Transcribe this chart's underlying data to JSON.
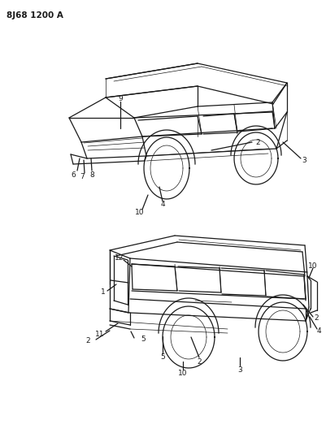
{
  "bg_color": "#ffffff",
  "title_text": "8J68 1200 A",
  "title_fontsize": 7.5,
  "title_fontweight": "bold",
  "fig_width": 4.01,
  "fig_height": 5.33,
  "dpi": 100,
  "line_color": "#1a1a1a",
  "label_fontsize": 6.5,
  "lw_main": 0.9,
  "lw_thin": 0.5
}
